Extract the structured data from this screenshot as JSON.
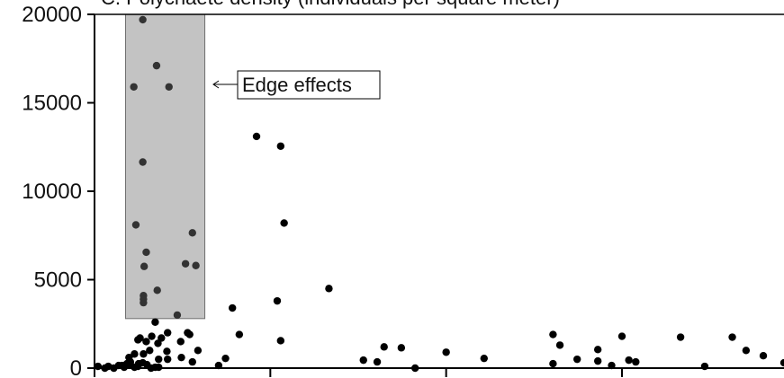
{
  "chart_data": {
    "type": "scatter",
    "title": "C. Polychaete density (individuals per square meter)",
    "xlabel": "",
    "ylabel": "",
    "ylim": [
      0,
      20000
    ],
    "yticks": [
      "0",
      "5000",
      "10000",
      "15000",
      "20000"
    ],
    "xlim": [
      0,
      100
    ],
    "xticks": [
      0,
      25.5,
      51,
      76.5
    ],
    "grid": false,
    "annotation": {
      "text": "Edge effects",
      "x_range": [
        4.5,
        16
      ],
      "y_range": [
        2800,
        20000
      ]
    },
    "highlight_color": "#c3c3c3",
    "point_color": "#000000",
    "points": [
      [
        0.5,
        100
      ],
      [
        1.5,
        0
      ],
      [
        2,
        100
      ],
      [
        2.8,
        0
      ],
      [
        3.5,
        150
      ],
      [
        4,
        150
      ],
      [
        4.7,
        250
      ],
      [
        5.2,
        200
      ],
      [
        5.8,
        50
      ],
      [
        6.3,
        100
      ],
      [
        4.3,
        50
      ],
      [
        5.2,
        350
      ],
      [
        6.4,
        250
      ],
      [
        7,
        300
      ],
      [
        7.6,
        200
      ],
      [
        8.2,
        0
      ],
      [
        8.8,
        50
      ],
      [
        9.3,
        50
      ],
      [
        5,
        600
      ],
      [
        5.8,
        800
      ],
      [
        6.3,
        1600
      ],
      [
        6.6,
        1700
      ],
      [
        7.5,
        1500
      ],
      [
        8.3,
        1800
      ],
      [
        8.8,
        2600
      ],
      [
        9.2,
        1400
      ],
      [
        9.7,
        1700
      ],
      [
        7.1,
        800
      ],
      [
        8,
        1000
      ],
      [
        9.3,
        500
      ],
      [
        10.5,
        950
      ],
      [
        10.6,
        2000
      ],
      [
        12.5,
        1500
      ],
      [
        13.5,
        2000
      ],
      [
        13.8,
        1900
      ],
      [
        10.6,
        500
      ],
      [
        12.6,
        600
      ],
      [
        14.2,
        350
      ],
      [
        15,
        1000
      ],
      [
        12,
        3000
      ],
      [
        5.7,
        15900
      ],
      [
        7,
        19700
      ],
      [
        9,
        17100
      ],
      [
        10.8,
        15900
      ],
      [
        7,
        11650
      ],
      [
        6,
        8100
      ],
      [
        14.2,
        7650
      ],
      [
        7.5,
        6550
      ],
      [
        13.2,
        5900
      ],
      [
        14.7,
        5800
      ],
      [
        7.2,
        5750
      ],
      [
        9.1,
        4400
      ],
      [
        7.1,
        4100
      ],
      [
        7.1,
        3900
      ],
      [
        7.1,
        3700
      ],
      [
        18,
        150
      ],
      [
        19,
        550
      ],
      [
        20,
        3400
      ],
      [
        21,
        1900
      ],
      [
        23.5,
        13100
      ],
      [
        26.5,
        3800
      ],
      [
        27,
        12550
      ],
      [
        27.5,
        8200
      ],
      [
        27,
        1550
      ],
      [
        34,
        4500
      ],
      [
        39,
        450
      ],
      [
        41,
        350
      ],
      [
        42,
        1200
      ],
      [
        44.5,
        1150
      ],
      [
        46.5,
        0
      ],
      [
        51,
        900
      ],
      [
        56.5,
        550
      ],
      [
        66.5,
        1900
      ],
      [
        67.5,
        1300
      ],
      [
        66.5,
        250
      ],
      [
        70,
        500
      ],
      [
        73,
        400
      ],
      [
        73,
        1050
      ],
      [
        76.5,
        1800
      ],
      [
        77.5,
        450
      ],
      [
        78.5,
        350
      ],
      [
        75,
        150
      ],
      [
        85,
        1750
      ],
      [
        88.5,
        100
      ],
      [
        92.5,
        1750
      ],
      [
        94.5,
        1000
      ],
      [
        97,
        700
      ],
      [
        100,
        300
      ]
    ]
  },
  "legend": {
    "edge_label": "Edge effects"
  }
}
